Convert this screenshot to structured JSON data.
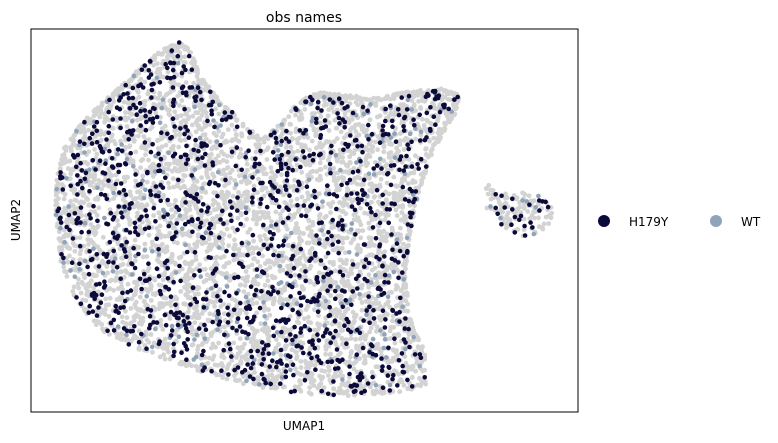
{
  "chart_data": {
    "type": "scatter",
    "title": "obs names",
    "xlabel": "UMAP1",
    "ylabel": "UMAP2",
    "xticks": [],
    "yticks": [],
    "grid": false,
    "legend_placement": "right-outside",
    "background_color": "#d3d3d3",
    "series": [
      {
        "name": "H179Y",
        "color": "#0b0a3b",
        "values": []
      },
      {
        "name": "WT",
        "color": "#8fa4b8",
        "values": []
      }
    ],
    "description_note": ""
  }
}
